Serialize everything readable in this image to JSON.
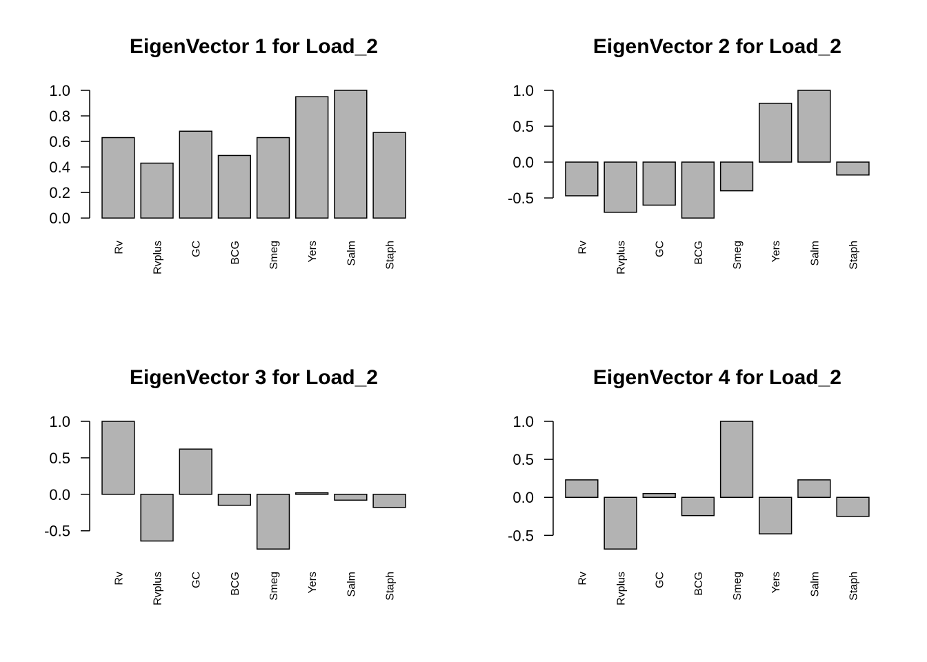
{
  "chart_data": [
    {
      "type": "bar",
      "title": "EigenVector 1 for Load_2",
      "categories": [
        "Rv",
        "Rvplus",
        "GC",
        "BCG",
        "Smeg",
        "Yers",
        "Salm",
        "Staph"
      ],
      "values": [
        0.63,
        0.43,
        0.68,
        0.49,
        0.63,
        0.95,
        1.0,
        0.67
      ],
      "color": "#b3b3b3",
      "ylim": [
        0,
        1
      ],
      "yticks": [
        {
          "value": 0,
          "label": "0.0"
        },
        0.2,
        0.4,
        0.6,
        0.8,
        {
          "value": 1,
          "label": "1.0"
        }
      ]
    },
    {
      "type": "bar",
      "title": "EigenVector 2 for Load_2",
      "categories": [
        "Rv",
        "Rvplus",
        "GC",
        "BCG",
        "Smeg",
        "Yers",
        "Salm",
        "Staph"
      ],
      "values": [
        -0.47,
        -0.7,
        -0.6,
        -0.78,
        -0.4,
        0.82,
        1.0,
        -0.18
      ],
      "color": "#b3b3b3",
      "ylim": [
        -0.78,
        1
      ],
      "yticks": [
        -0.5,
        {
          "value": 0,
          "label": "0.0"
        },
        0.5,
        {
          "value": 1,
          "label": "1.0"
        }
      ]
    },
    {
      "type": "bar",
      "title": "EigenVector 3 for Load_2",
      "categories": [
        "Rv",
        "Rvplus",
        "GC",
        "BCG",
        "Smeg",
        "Yers",
        "Salm",
        "Staph"
      ],
      "values": [
        1.0,
        -0.64,
        0.62,
        -0.15,
        -0.75,
        0.02,
        -0.08,
        -0.18
      ],
      "color": "#b3b3b3",
      "ylim": [
        -0.75,
        1
      ],
      "yticks": [
        -0.5,
        {
          "value": 0,
          "label": "0.0"
        },
        0.5,
        {
          "value": 1,
          "label": "1.0"
        }
      ]
    },
    {
      "type": "bar",
      "title": "EigenVector 4 for Load_2",
      "categories": [
        "Rv",
        "Rvplus",
        "GC",
        "BCG",
        "Smeg",
        "Yers",
        "Salm",
        "Staph"
      ],
      "values": [
        0.23,
        -0.68,
        0.05,
        -0.24,
        1.0,
        -0.48,
        0.23,
        -0.25
      ],
      "color": "#b3b3b3",
      "ylim": [
        -0.68,
        1
      ],
      "yticks": [
        -0.5,
        {
          "value": 0,
          "label": "0.0"
        },
        0.5,
        {
          "value": 1,
          "label": "1.0"
        }
      ]
    }
  ]
}
